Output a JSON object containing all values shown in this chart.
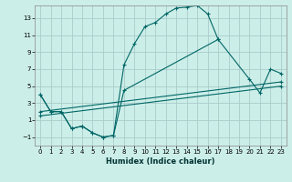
{
  "xlabel": "Humidex (Indice chaleur)",
  "bg_color": "#cceee8",
  "grid_color": "#aacccc",
  "line_color": "#006666",
  "xlim": [
    -0.5,
    23.5
  ],
  "ylim": [
    -2,
    14.5
  ],
  "xticks": [
    0,
    1,
    2,
    3,
    4,
    5,
    6,
    7,
    8,
    9,
    10,
    11,
    12,
    13,
    14,
    15,
    16,
    17,
    18,
    19,
    20,
    21,
    22,
    23
  ],
  "yticks": [
    -1,
    1,
    3,
    5,
    7,
    9,
    11,
    13
  ],
  "curve1_x": [
    0,
    1,
    2,
    3,
    4,
    5,
    6,
    7,
    8,
    9,
    10,
    11,
    12,
    13,
    14,
    15,
    16,
    17
  ],
  "curve1_y": [
    4,
    2,
    2,
    0,
    0.3,
    -0.5,
    -1,
    -0.8,
    7.5,
    10,
    12,
    12.5,
    13.5,
    14.2,
    14.3,
    14.5,
    13.5,
    10.5
  ],
  "curve2_x": [
    0,
    1,
    2,
    3,
    4,
    5,
    6,
    7,
    8,
    17,
    20,
    21,
    22,
    23
  ],
  "curve2_y": [
    4,
    2,
    2,
    0,
    0.3,
    -0.5,
    -1,
    -0.8,
    4.5,
    10.5,
    5.8,
    4.2,
    7,
    6.5
  ],
  "line3_x": [
    0,
    23
  ],
  "line3_y": [
    2,
    5.5
  ],
  "line4_x": [
    0,
    23
  ],
  "line4_y": [
    1.5,
    5.0
  ],
  "zigzag_x": [
    17,
    20,
    21,
    22,
    23
  ],
  "zigzag_y": [
    10.5,
    5.8,
    4.2,
    7,
    6.5
  ]
}
